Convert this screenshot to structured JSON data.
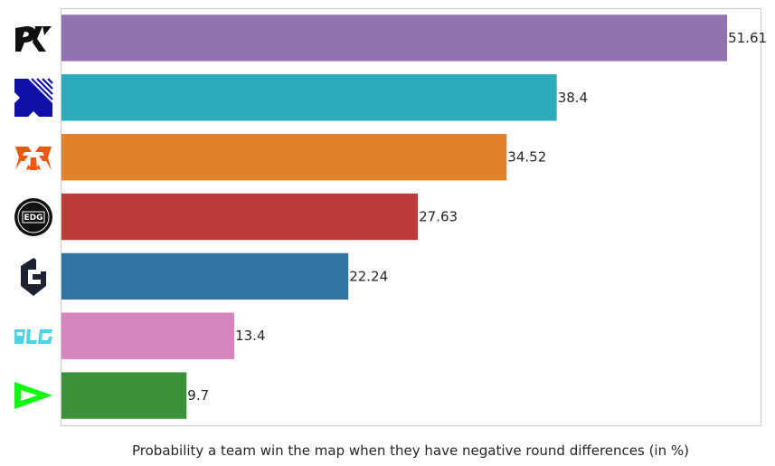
{
  "chart_data": {
    "type": "bar",
    "orientation": "horizontal",
    "categories": [
      "PRX",
      "Team X",
      "Fnatic",
      "EDG",
      "Evil Geniuses",
      "BLG",
      "LOUD"
    ],
    "values": [
      51.61,
      38.4,
      34.52,
      27.63,
      22.24,
      13.4,
      9.7
    ],
    "value_labels": [
      "51.61",
      "38.4",
      "34.52",
      "27.63",
      "22.24",
      "13.4",
      "9.7"
    ],
    "colors": [
      "#9372b2",
      "#2eabbb",
      "#e1812c",
      "#be3b3c",
      "#3274a1",
      "#d684bd",
      "#3b923b"
    ],
    "icons": [
      "prx-logo-icon",
      "x-logo-icon",
      "fnatic-logo-icon",
      "edg-logo-icon",
      "eg-logo-icon",
      "blg-logo-icon",
      "loud-logo-icon"
    ],
    "xlabel": "Probability a team win the map when they have negative round differences (in %)",
    "ylabel": "",
    "title": "",
    "xlim": [
      0,
      54.2
    ],
    "grid": false,
    "legend": "none"
  }
}
